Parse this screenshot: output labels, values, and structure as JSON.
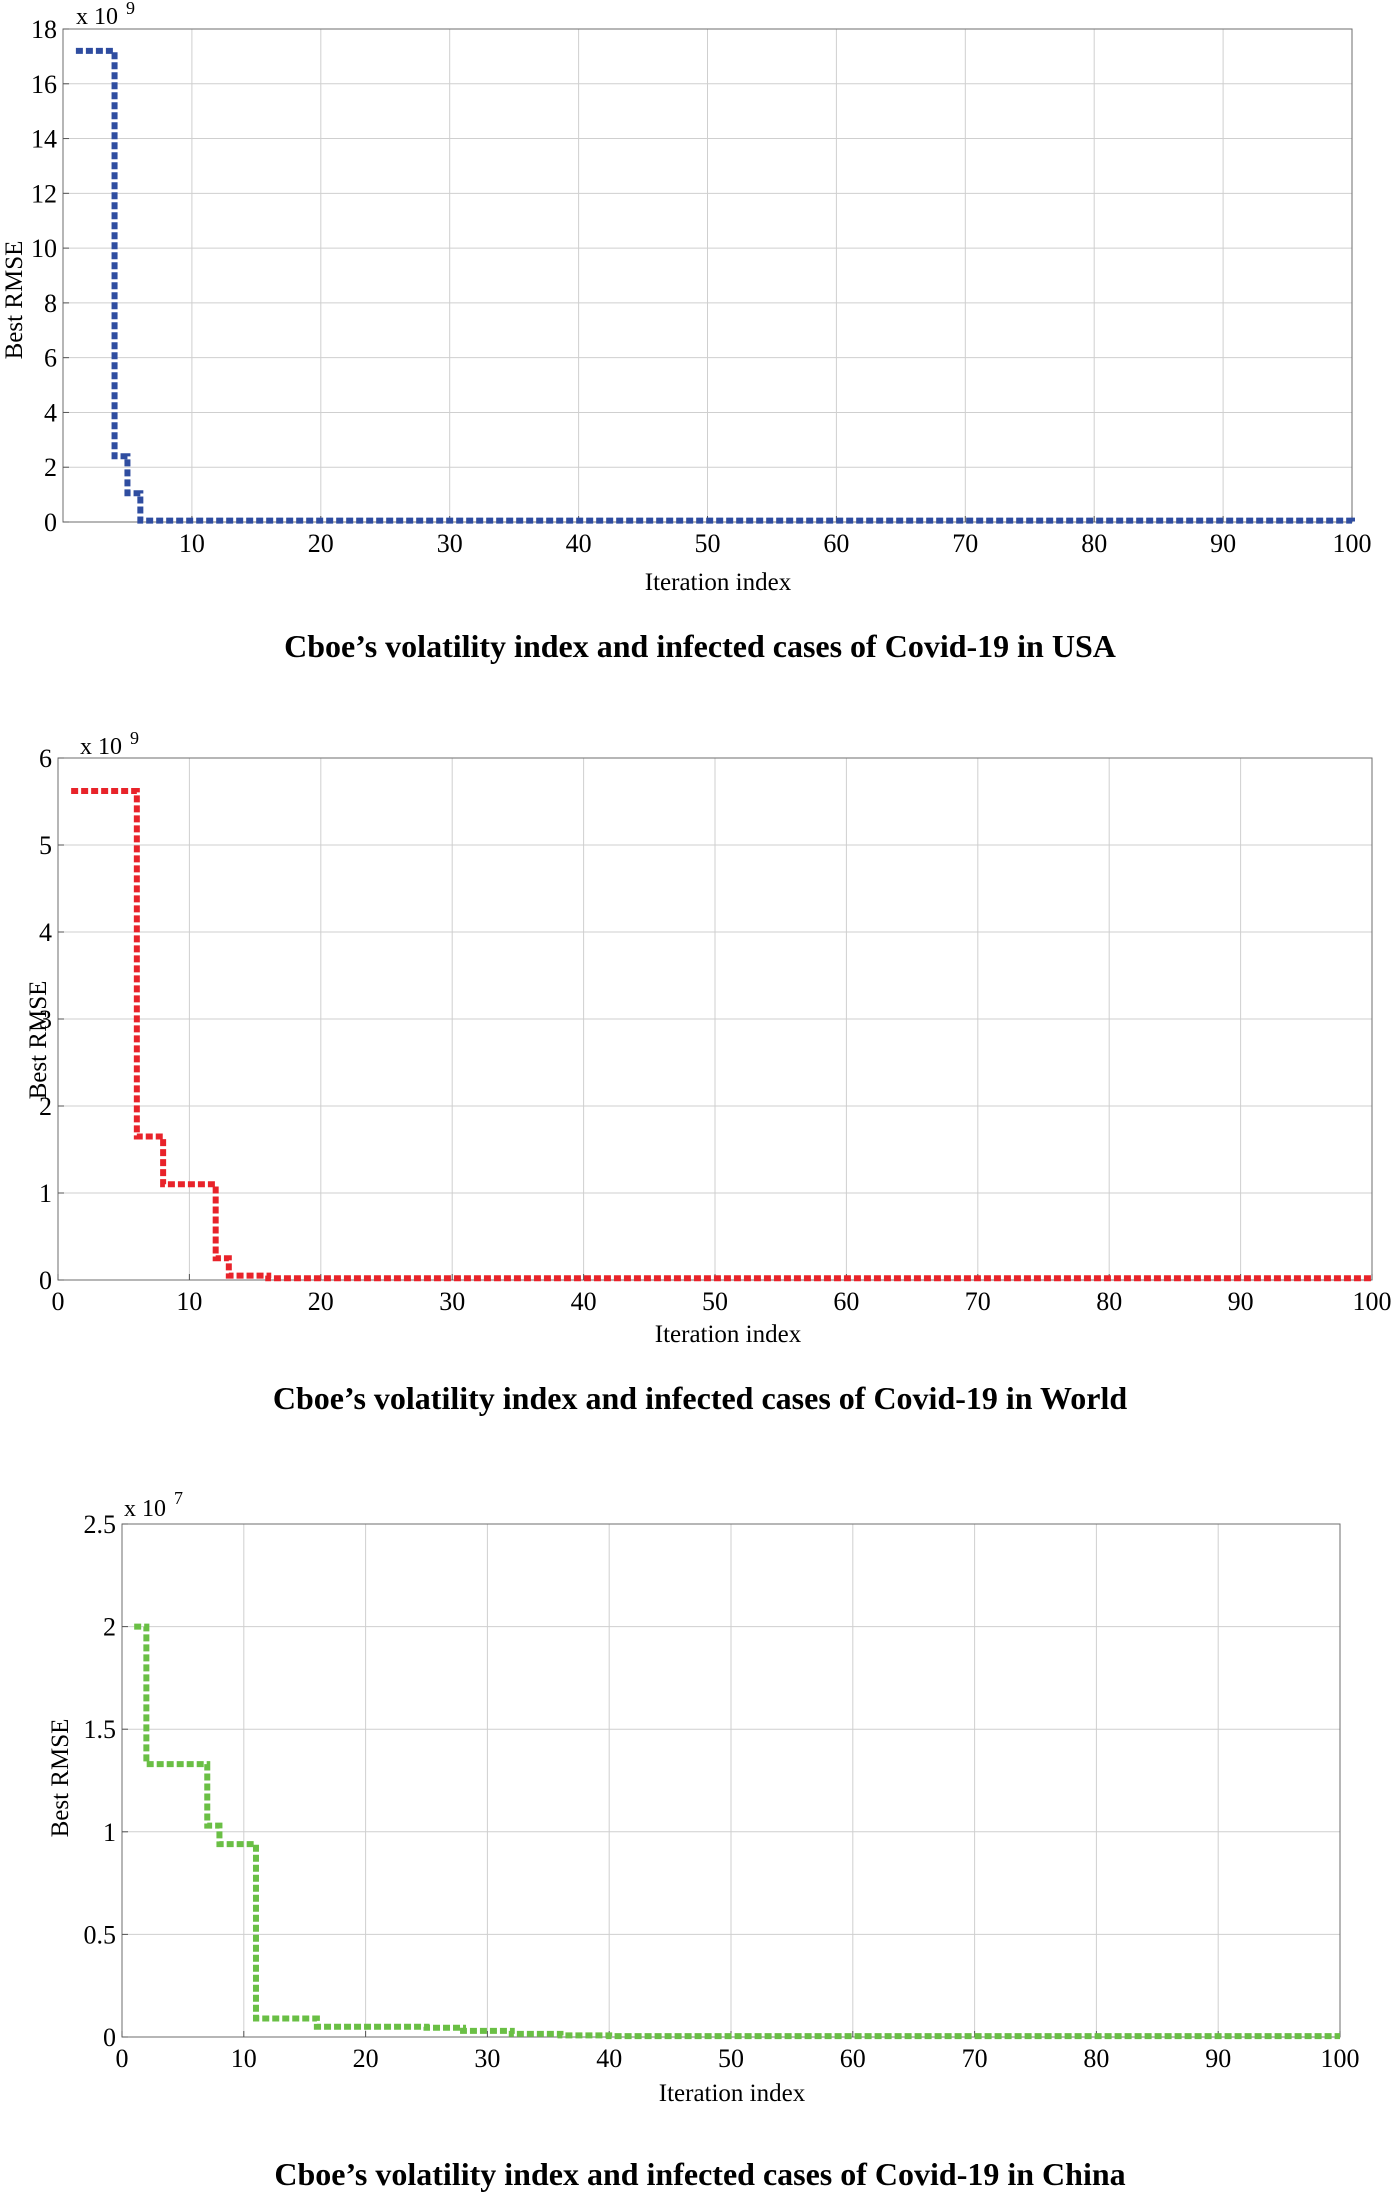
{
  "chart_data": [
    {
      "type": "line",
      "title": "",
      "caption": "Cboe’s volatility index and  infected cases of Covid-19 in USA",
      "xlabel": "Iteration index",
      "ylabel": "Best RMSE",
      "y_multiplier": {
        "base": "x 10",
        "exponent": "9"
      },
      "xlim": [
        0,
        100
      ],
      "ylim": [
        0,
        18
      ],
      "x_ticks": [
        10,
        20,
        30,
        40,
        50,
        60,
        70,
        80,
        90,
        100
      ],
      "y_ticks": [
        0,
        2,
        4,
        6,
        8,
        10,
        12,
        14,
        16,
        18
      ],
      "grid": true,
      "line_style": "dotted-step",
      "series": [
        {
          "color": "#2f4da0",
          "x": [
            1,
            4,
            5,
            6,
            100
          ],
          "y": [
            17.2,
            2.4,
            1.05,
            0.05,
            0.02
          ]
        }
      ]
    },
    {
      "type": "line",
      "title": "",
      "caption": "Cboe’s volatility index and  infected cases of Covid-19 in World",
      "xlabel": "Iteration index",
      "ylabel": "Best RMSE",
      "y_multiplier": {
        "base": "x 10",
        "exponent": "9"
      },
      "xlim": [
        0,
        100
      ],
      "ylim": [
        0,
        6
      ],
      "x_ticks": [
        0,
        10,
        20,
        30,
        40,
        50,
        60,
        70,
        80,
        90,
        100
      ],
      "y_ticks": [
        0,
        1,
        2,
        3,
        4,
        5,
        6
      ],
      "grid": true,
      "line_style": "dotted-step",
      "series": [
        {
          "color": "#e8232a",
          "x": [
            1,
            6,
            8,
            12,
            13,
            16,
            100
          ],
          "y": [
            5.62,
            1.65,
            1.1,
            0.25,
            0.05,
            0.02,
            0.02
          ]
        }
      ]
    },
    {
      "type": "line",
      "title": "",
      "caption": "Cboe’s volatility index and infected cases of Covid-19 in China",
      "xlabel": "Iteration index",
      "ylabel": "Best RMSE",
      "y_multiplier": {
        "base": "x 10",
        "exponent": "7"
      },
      "xlim": [
        0,
        100
      ],
      "ylim": [
        0,
        2.5
      ],
      "x_ticks": [
        0,
        10,
        20,
        30,
        40,
        50,
        60,
        70,
        80,
        90,
        100
      ],
      "y_ticks": [
        0,
        0.5,
        1,
        1.5,
        2,
        2.5
      ],
      "grid": true,
      "line_style": "dotted-step",
      "series": [
        {
          "color": "#6abf45",
          "x": [
            1,
            2,
            7,
            8,
            11,
            16,
            25,
            28,
            32,
            36,
            40,
            100
          ],
          "y": [
            2.0,
            1.33,
            1.03,
            0.94,
            0.09,
            0.05,
            0.045,
            0.03,
            0.015,
            0.008,
            0.004,
            0.004
          ]
        }
      ]
    }
  ]
}
